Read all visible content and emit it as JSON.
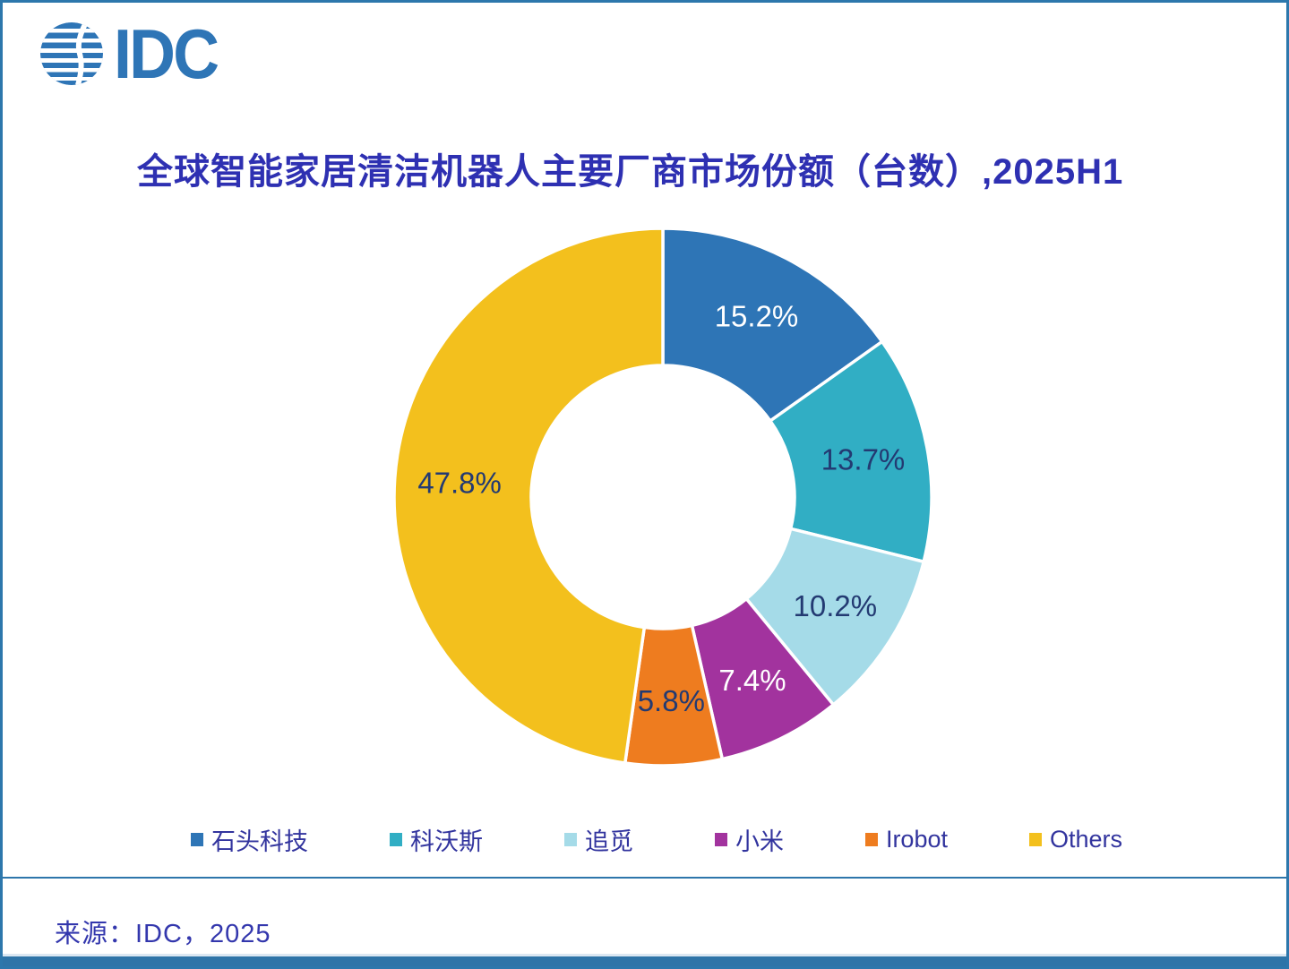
{
  "logo": {
    "text": "IDC",
    "color": "#2E75B6"
  },
  "title": {
    "text": "全球智能家居清洁机器人主要厂商市场份额（台数）,2025H1",
    "color": "#2E30B2"
  },
  "chart_data": {
    "type": "pie",
    "subtype": "donut",
    "title": "全球智能家居清洁机器人主要厂商市场份额（台数）,2025H1",
    "categories": [
      "石头科技",
      "科沃斯",
      "追觅",
      "小米",
      "Irobot",
      "Others"
    ],
    "values": [
      15.2,
      13.7,
      10.2,
      7.4,
      5.8,
      47.8
    ],
    "labels": [
      "15.2%",
      "13.7%",
      "10.2%",
      "7.4%",
      "5.8%",
      "47.8%"
    ],
    "unit": "%",
    "colors": [
      "#2E75B6",
      "#31AEC4",
      "#A5DBE8",
      "#A2339E",
      "#EE7C1F",
      "#F3C01D"
    ],
    "label_colors": [
      "#FFFFFF",
      "#233A72",
      "#233A72",
      "#FFFFFF",
      "#233A72",
      "#233A72"
    ],
    "donut_hole_ratio": 0.49,
    "start_angle_deg": 0,
    "direction": "clockwise",
    "legend_position": "bottom",
    "segment_gap_color": "#FFFFFF"
  },
  "footer": {
    "source": "来源：IDC，2025"
  },
  "frame": {
    "border_color": "#2D77AC",
    "accent_color": "#2E74A8"
  }
}
